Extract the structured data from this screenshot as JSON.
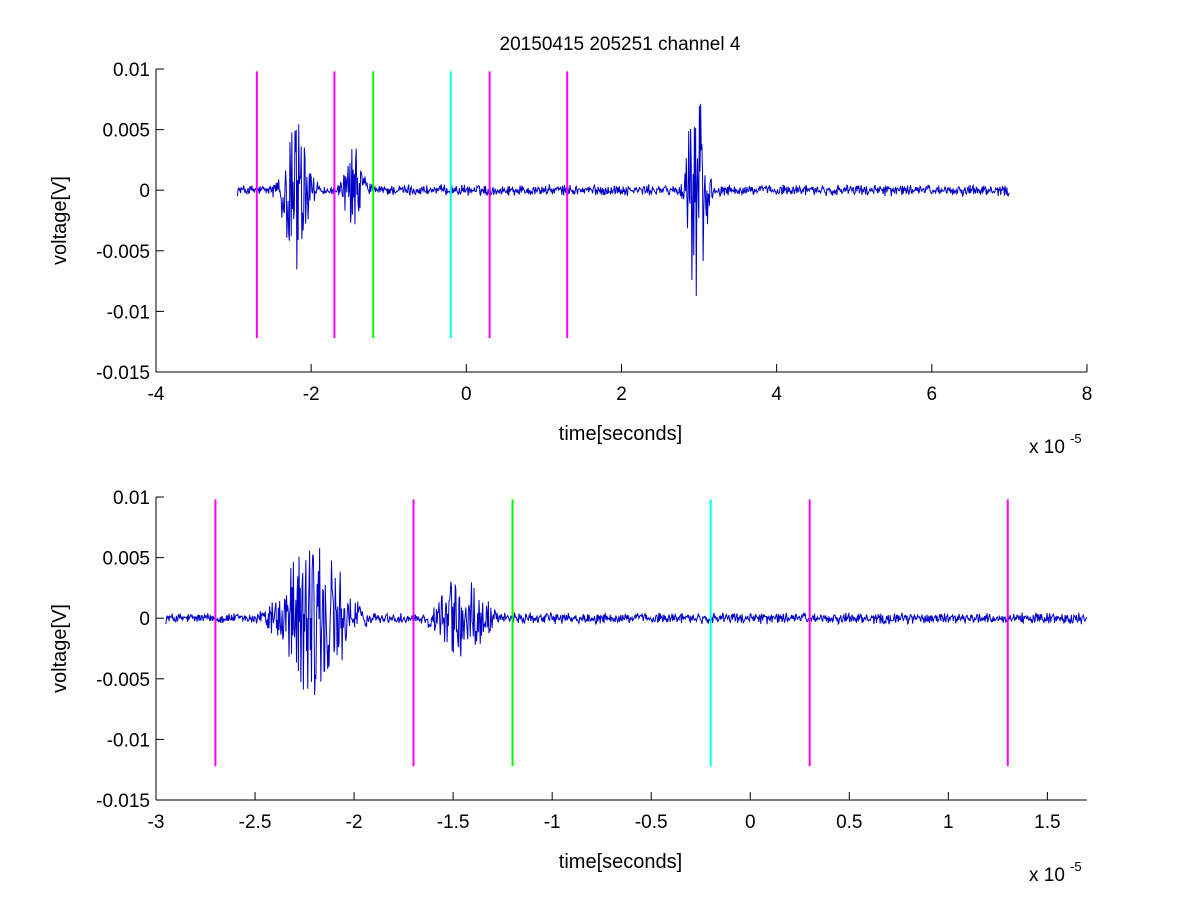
{
  "chart_data": [
    {
      "type": "line",
      "title": "20150415 205251 channel 4",
      "xlabel": "time[seconds]",
      "ylabel": "voltage[V]",
      "x_multiplier_base": "x 10",
      "x_multiplier_exp": "-5",
      "xlim": [
        -4,
        8
      ],
      "ylim": [
        -0.015,
        0.01
      ],
      "xticks": [
        -4,
        -2,
        0,
        2,
        4,
        6,
        8
      ],
      "xtick_labels": [
        "-4",
        "-2",
        "0",
        "2",
        "4",
        "6",
        "8"
      ],
      "yticks": [
        -0.015,
        -0.01,
        -0.005,
        0,
        0.005,
        0.01
      ],
      "ytick_labels": [
        "-0.015",
        "-0.01",
        "-0.005",
        "0",
        "0.005",
        "0.01"
      ],
      "signal": {
        "color": "#0000c8",
        "x_range": [
          -2.95,
          7.0
        ],
        "bursts": [
          {
            "x": -2.2,
            "width": 0.28,
            "amp": 0.007
          },
          {
            "x": -1.45,
            "width": 0.22,
            "amp": 0.0037
          },
          {
            "x": 2.97,
            "width": 0.22,
            "amp": 0.0095
          }
        ]
      },
      "markers": [
        {
          "x": -2.7,
          "color": "#ff00ff"
        },
        {
          "x": -1.7,
          "color": "#ff00ff"
        },
        {
          "x": -1.2,
          "color": "#00ff00"
        },
        {
          "x": -0.2,
          "color": "#00ffff"
        },
        {
          "x": 0.3,
          "color": "#ff00ff"
        },
        {
          "x": 1.3,
          "color": "#ff00ff"
        }
      ],
      "marker_yrange": [
        -0.0122,
        0.0098
      ]
    },
    {
      "type": "line",
      "title": "",
      "xlabel": "time[seconds]",
      "ylabel": "voltage[V]",
      "x_multiplier_base": "x 10",
      "x_multiplier_exp": "-5",
      "xlim": [
        -3.0,
        1.7
      ],
      "ylim": [
        -0.015,
        0.01
      ],
      "xticks": [
        -3,
        -2.5,
        -2,
        -1.5,
        -1,
        -0.5,
        0,
        0.5,
        1,
        1.5
      ],
      "xtick_labels": [
        "-3",
        "-2.5",
        "-2",
        "-1.5",
        "-1",
        "-0.5",
        "0",
        "0.5",
        "1",
        "1.5"
      ],
      "yticks": [
        -0.015,
        -0.01,
        -0.005,
        0,
        0.005,
        0.01
      ],
      "ytick_labels": [
        "-0.015",
        "-0.01",
        "-0.005",
        "0",
        "0.005",
        "0.01"
      ],
      "signal": {
        "color": "#0000c8",
        "x_range": [
          -2.95,
          1.7
        ],
        "bursts": [
          {
            "x": -2.2,
            "width": 0.28,
            "amp": 0.007
          },
          {
            "x": -1.45,
            "width": 0.22,
            "amp": 0.0037
          }
        ]
      },
      "markers": [
        {
          "x": -2.7,
          "color": "#ff00ff"
        },
        {
          "x": -1.7,
          "color": "#ff00ff"
        },
        {
          "x": -1.2,
          "color": "#00ff00"
        },
        {
          "x": -0.2,
          "color": "#00ffff"
        },
        {
          "x": 0.3,
          "color": "#ff00ff"
        },
        {
          "x": 1.3,
          "color": "#ff00ff"
        }
      ],
      "marker_yrange": [
        -0.0122,
        0.0098
      ]
    }
  ]
}
